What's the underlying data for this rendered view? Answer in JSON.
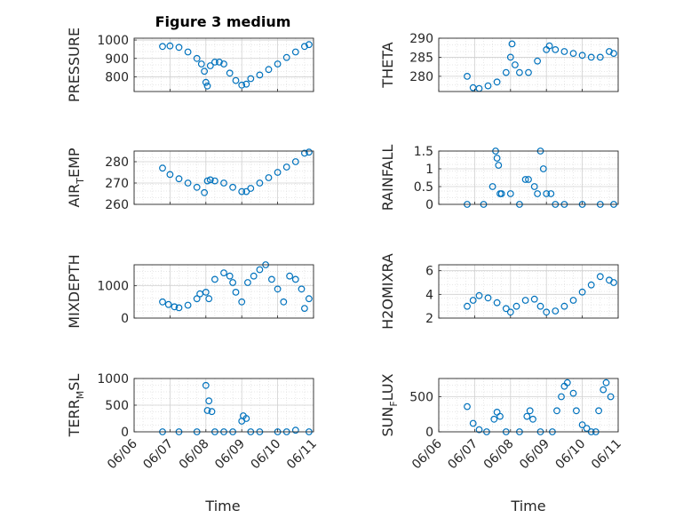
{
  "figure": {
    "title": "Figure 3 medium",
    "time_label": "Time",
    "date_ticks": [
      "06/06",
      "06/07",
      "06/08",
      "06/09",
      "06/10",
      "06/11"
    ],
    "marker_color": "#0072BD",
    "grid": true
  },
  "chart_data": [
    {
      "type": "scatter",
      "ylabel": "PRESSURE",
      "ylim": [
        720,
        1010
      ],
      "yticks": [
        "800",
        "900",
        "1000"
      ],
      "x": [
        "06/06 19:00",
        "06/07 00:00",
        "06/07 06:00",
        "06/07 12:00",
        "06/07 18:00",
        "06/07 21:00",
        "06/07 23:00",
        "06/08 00:00",
        "06/08 01:00",
        "06/08 03:00",
        "06/08 06:00",
        "06/08 09:00",
        "06/08 12:00",
        "06/08 16:00",
        "06/08 20:00",
        "06/09 00:00",
        "06/09 03:00",
        "06/09 06:00",
        "06/09 12:00",
        "06/09 18:00",
        "06/10 00:00",
        "06/10 06:00",
        "06/10 12:00",
        "06/10 18:00",
        "06/10 21:00"
      ],
      "y": [
        965,
        968,
        960,
        935,
        900,
        870,
        830,
        770,
        750,
        860,
        880,
        880,
        870,
        820,
        780,
        755,
        760,
        790,
        810,
        840,
        870,
        905,
        935,
        965,
        975
      ]
    },
    {
      "type": "scatter",
      "ylabel": "THETA",
      "ylim": [
        276,
        290
      ],
      "yticks": [
        "280",
        "285",
        "290"
      ],
      "x": [
        "06/06 19:00",
        "06/06 23:00",
        "06/07 03:00",
        "06/07 09:00",
        "06/07 15:00",
        "06/07 21:00",
        "06/08 00:00",
        "06/08 01:00",
        "06/08 03:00",
        "06/08 06:00",
        "06/08 12:00",
        "06/08 18:00",
        "06/09 00:00",
        "06/09 02:00",
        "06/09 06:00",
        "06/09 12:00",
        "06/09 18:00",
        "06/10 00:00",
        "06/10 06:00",
        "06/10 12:00",
        "06/10 18:00",
        "06/10 21:00"
      ],
      "y": [
        280,
        277,
        276.8,
        277.5,
        278.5,
        281,
        285,
        288.5,
        283,
        281,
        281,
        284,
        287,
        288,
        287,
        286.5,
        286,
        285.5,
        285,
        285,
        286.5,
        286
      ]
    },
    {
      "type": "scatter",
      "ylabel": "AIR_TEMP",
      "ylim": [
        260,
        285
      ],
      "yticks": [
        "260",
        "270",
        "280"
      ],
      "x": [
        "06/06 19:00",
        "06/07 00:00",
        "06/07 06:00",
        "06/07 12:00",
        "06/07 18:00",
        "06/07 23:00",
        "06/08 01:00",
        "06/08 03:00",
        "06/08 06:00",
        "06/08 12:00",
        "06/08 18:00",
        "06/09 00:00",
        "06/09 03:00",
        "06/09 06:00",
        "06/09 12:00",
        "06/09 18:00",
        "06/10 00:00",
        "06/10 06:00",
        "06/10 12:00",
        "06/10 18:00",
        "06/10 21:00"
      ],
      "y": [
        277,
        274,
        272,
        270,
        268,
        265.5,
        271,
        271.5,
        271,
        270,
        268,
        266,
        266,
        267.5,
        270,
        272.5,
        275,
        277.5,
        280,
        284,
        284.5
      ]
    },
    {
      "type": "scatter",
      "ylabel": "RAINFALL",
      "ylim": [
        0,
        1.5
      ],
      "yticks": [
        "0",
        "0.5",
        "1",
        "1.5"
      ],
      "x": [
        "06/06 19:00",
        "06/07 06:00",
        "06/07 12:00",
        "06/07 14:00",
        "06/07 15:00",
        "06/07 16:00",
        "06/07 17:00",
        "06/07 18:00",
        "06/08 00:00",
        "06/08 06:00",
        "06/08 10:00",
        "06/08 12:00",
        "06/08 16:00",
        "06/08 18:00",
        "06/08 20:00",
        "06/08 22:00",
        "06/09 00:00",
        "06/09 03:00",
        "06/09 06:00",
        "06/09 12:00",
        "06/10 00:00",
        "06/10 12:00",
        "06/10 21:00"
      ],
      "y": [
        0,
        0,
        0.5,
        1.5,
        1.3,
        1.1,
        0.3,
        0.3,
        0.3,
        0,
        0.7,
        0.7,
        0.5,
        0.3,
        1.5,
        1.0,
        0.3,
        0.3,
        0,
        0,
        0,
        0,
        0
      ]
    },
    {
      "type": "scatter",
      "ylabel": "MIXDEPTH",
      "ylim": [
        0,
        1650
      ],
      "yticks": [
        "0",
        "1000"
      ],
      "x": [
        "06/06 19:00",
        "06/06 23:00",
        "06/07 03:00",
        "06/07 06:00",
        "06/07 12:00",
        "06/07 18:00",
        "06/07 20:00",
        "06/08 00:00",
        "06/08 02:00",
        "06/08 06:00",
        "06/08 12:00",
        "06/08 16:00",
        "06/08 18:00",
        "06/08 20:00",
        "06/09 00:00",
        "06/09 04:00",
        "06/09 08:00",
        "06/09 12:00",
        "06/09 16:00",
        "06/09 20:00",
        "06/10 00:00",
        "06/10 04:00",
        "06/10 08:00",
        "06/10 12:00",
        "06/10 16:00",
        "06/10 18:00",
        "06/10 21:00"
      ],
      "y": [
        500,
        420,
        350,
        320,
        400,
        600,
        750,
        800,
        600,
        1200,
        1400,
        1300,
        1100,
        800,
        500,
        1100,
        1300,
        1500,
        1650,
        1200,
        900,
        500,
        1300,
        1200,
        900,
        300,
        600
      ]
    },
    {
      "type": "scatter",
      "ylabel": "H2OMIXRA",
      "ylim": [
        2,
        6.5
      ],
      "yticks": [
        "2",
        "4",
        "6"
      ],
      "x": [
        "06/06 19:00",
        "06/06 23:00",
        "06/07 03:00",
        "06/07 09:00",
        "06/07 15:00",
        "06/07 21:00",
        "06/08 00:00",
        "06/08 04:00",
        "06/08 10:00",
        "06/08 16:00",
        "06/08 20:00",
        "06/09 00:00",
        "06/09 06:00",
        "06/09 12:00",
        "06/09 18:00",
        "06/10 00:00",
        "06/10 06:00",
        "06/10 12:00",
        "06/10 18:00",
        "06/10 21:00"
      ],
      "y": [
        3,
        3.5,
        3.9,
        3.7,
        3.3,
        2.8,
        2.5,
        3.0,
        3.5,
        3.6,
        3.0,
        2.5,
        2.6,
        3.0,
        3.5,
        4.2,
        4.8,
        5.5,
        5.2,
        5.0
      ]
    },
    {
      "type": "scatter",
      "ylabel": "TERR_MSL",
      "ylim": [
        0,
        1000
      ],
      "yticks": [
        "0",
        "500",
        "1000"
      ],
      "x": [
        "06/06 19:00",
        "06/07 06:00",
        "06/07 18:00",
        "06/08 00:00",
        "06/08 01:00",
        "06/08 02:00",
        "06/08 04:00",
        "06/08 06:00",
        "06/08 12:00",
        "06/08 18:00",
        "06/09 00:00",
        "06/09 01:00",
        "06/09 03:00",
        "06/09 06:00",
        "06/09 12:00",
        "06/10 00:00",
        "06/10 06:00",
        "06/10 12:00",
        "06/10 21:00"
      ],
      "y": [
        0,
        0,
        0,
        870,
        400,
        580,
        380,
        0,
        0,
        0,
        200,
        300,
        250,
        0,
        0,
        0,
        0,
        30,
        0
      ]
    },
    {
      "type": "scatter",
      "ylabel": "SUN_FLUX",
      "ylim": [
        0,
        760
      ],
      "yticks": [
        "0",
        "500"
      ],
      "x": [
        "06/06 19:00",
        "06/06 23:00",
        "06/07 03:00",
        "06/07 08:00",
        "06/07 13:00",
        "06/07 15:00",
        "06/07 17:00",
        "06/07 21:00",
        "06/08 06:00",
        "06/08 11:00",
        "06/08 13:00",
        "06/08 15:00",
        "06/08 20:00",
        "06/09 04:00",
        "06/09 07:00",
        "06/09 10:00",
        "06/09 12:00",
        "06/09 14:00",
        "06/09 18:00",
        "06/09 20:00",
        "06/10 00:00",
        "06/10 03:00",
        "06/10 06:00",
        "06/10 09:00",
        "06/10 11:00",
        "06/10 14:00",
        "06/10 16:00",
        "06/10 19:00"
      ],
      "y": [
        360,
        120,
        30,
        0,
        180,
        280,
        220,
        0,
        0,
        220,
        300,
        180,
        0,
        0,
        300,
        500,
        650,
        700,
        550,
        300,
        100,
        50,
        0,
        0,
        300,
        600,
        700,
        500
      ]
    }
  ]
}
